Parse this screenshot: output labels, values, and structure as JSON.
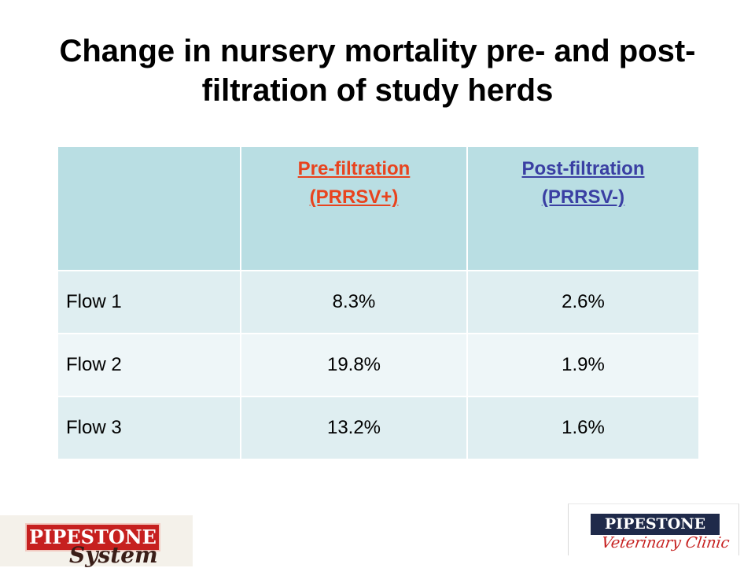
{
  "slide": {
    "title_line1": "Change in nursery mortality pre- and post-",
    "title_line2": "filtration of study herds"
  },
  "table": {
    "header": {
      "blank": "",
      "pre_line1": "Pre-filtration",
      "pre_line2": "(PRRSV+)",
      "post_line1": "Post-filtration",
      "post_line2": "(PRRSV-)"
    },
    "rows": [
      {
        "label": "Flow 1",
        "pre": "8.3%",
        "post": "2.6%"
      },
      {
        "label": "Flow 2",
        "pre": "19.8%",
        "post": "1.9%"
      },
      {
        "label": "Flow 3",
        "pre": "13.2%",
        "post": "1.6%"
      }
    ]
  },
  "logos": {
    "left_name": "PIPESTONE",
    "left_script": "System",
    "right_name": "PIPESTONE",
    "right_script": "Veterinary Clinic"
  },
  "colors": {
    "header_bg": "#b9dee3",
    "pre_link": "#e8431e",
    "post_link": "#3a3fa3",
    "row_odd": "#dfeef1",
    "row_even": "#eef6f8"
  }
}
